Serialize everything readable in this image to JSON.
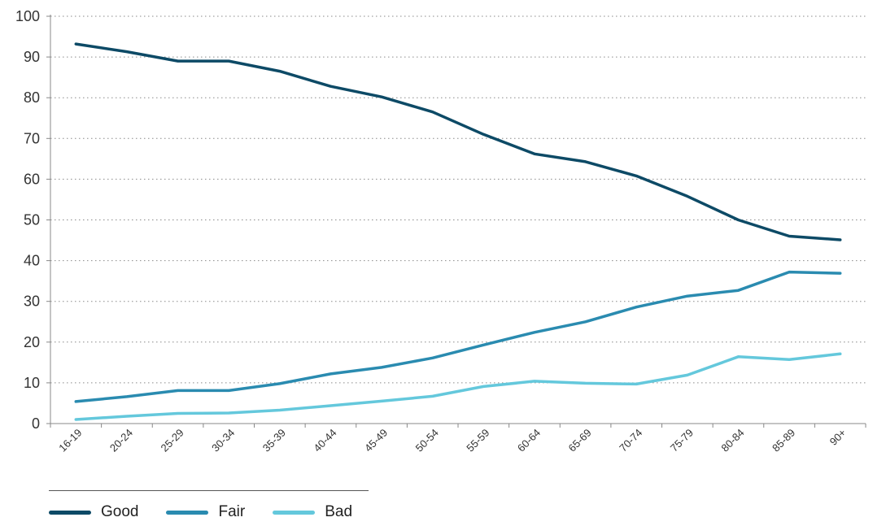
{
  "chart_data": {
    "type": "line",
    "categories": [
      "16-19",
      "20-24",
      "25-29",
      "30-34",
      "35-39",
      "40-44",
      "45-49",
      "50-54",
      "55-59",
      "60-64",
      "65-69",
      "70-74",
      "75-79",
      "80-84",
      "85-89",
      "90+"
    ],
    "ylim": [
      0,
      100
    ],
    "yticks": [
      0,
      10,
      20,
      30,
      40,
      50,
      60,
      70,
      80,
      90,
      100
    ],
    "grid": true,
    "legend_position": "bottom-left",
    "series": [
      {
        "name": "Good",
        "color": "#0d4a66",
        "values": [
          93.2,
          91.3,
          89.0,
          89.0,
          86.5,
          82.8,
          80.2,
          76.5,
          71.0,
          66.2,
          64.3,
          60.8,
          55.8,
          50.0,
          46.0,
          45.1
        ]
      },
      {
        "name": "Fair",
        "color": "#2a8bb0",
        "values": [
          5.4,
          6.6,
          8.1,
          8.1,
          9.8,
          12.2,
          13.8,
          16.1,
          19.3,
          22.4,
          25.0,
          28.6,
          31.3,
          32.7,
          37.2,
          36.9
        ]
      },
      {
        "name": "Bad",
        "color": "#64c8dc",
        "values": [
          1.0,
          1.8,
          2.5,
          2.6,
          3.3,
          4.4,
          5.5,
          6.7,
          9.1,
          10.4,
          9.9,
          9.7,
          11.9,
          16.4,
          15.7,
          17.1
        ]
      }
    ]
  }
}
